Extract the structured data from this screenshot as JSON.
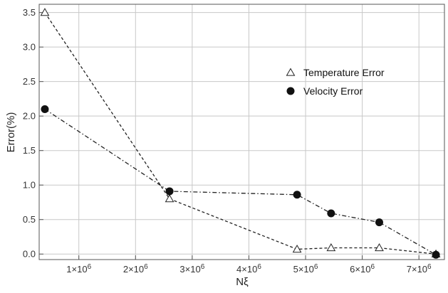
{
  "chart_data": {
    "type": "line",
    "xlabel": "Nξ",
    "ylabel": "Error(%)",
    "xlim": [
      300000,
      7450000
    ],
    "ylim": [
      -0.08,
      3.62
    ],
    "x_ticks": [
      {
        "value": 1000000,
        "mant": "1",
        "exp": "6"
      },
      {
        "value": 2000000,
        "mant": "2",
        "exp": "6"
      },
      {
        "value": 3000000,
        "mant": "3",
        "exp": "6"
      },
      {
        "value": 4000000,
        "mant": "4",
        "exp": "6"
      },
      {
        "value": 5000000,
        "mant": "5",
        "exp": "6"
      },
      {
        "value": 6000000,
        "mant": "6",
        "exp": "6"
      },
      {
        "value": 7000000,
        "mant": "7",
        "exp": "6"
      }
    ],
    "x_tick_prefix": "×10",
    "y_ticks": [
      {
        "value": 0.0,
        "label": "0.0"
      },
      {
        "value": 0.5,
        "label": "0.5"
      },
      {
        "value": 1.0,
        "label": "1.0"
      },
      {
        "value": 1.5,
        "label": "1.5"
      },
      {
        "value": 2.0,
        "label": "2.0"
      },
      {
        "value": 2.5,
        "label": "2.5"
      },
      {
        "value": 3.0,
        "label": "3.0"
      },
      {
        "value": 3.5,
        "label": "3.5"
      }
    ],
    "grid": true,
    "legend_position": "upper-right",
    "series": [
      {
        "name": "Temperature Error",
        "marker": "open-triangle",
        "line_style": "dashed",
        "x": [
          400000,
          2600000,
          4850000,
          5450000,
          6300000,
          7300000
        ],
        "y": [
          3.5,
          0.8,
          0.07,
          0.09,
          0.09,
          0.0
        ]
      },
      {
        "name": "Velocity Error",
        "marker": "filled-circle",
        "line_style": "dash-dot",
        "x": [
          400000,
          2600000,
          4850000,
          5450000,
          6300000,
          7300000
        ],
        "y": [
          2.1,
          0.91,
          0.86,
          0.59,
          0.46,
          -0.01
        ]
      }
    ]
  }
}
